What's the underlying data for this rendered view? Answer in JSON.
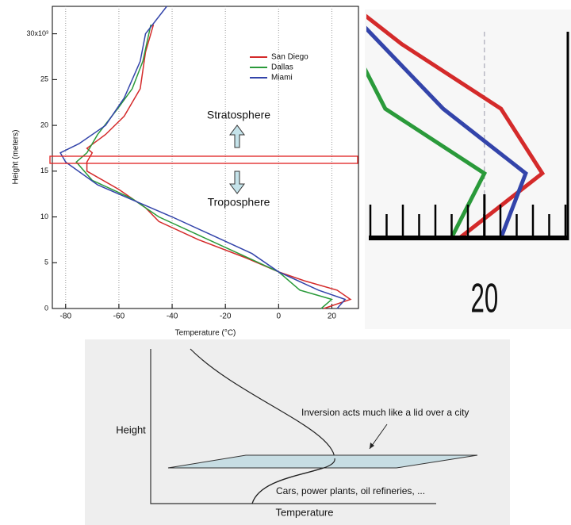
{
  "chart_data": {
    "type": "line",
    "x_label": "Temperature (°C)",
    "y_label": "Height (meters)",
    "annotations": [
      "Stratosphere",
      "Troposphere"
    ],
    "series": [
      {
        "name": "San Diego",
        "color": "#d42a2a",
        "x": [
          17,
          27,
          22,
          10,
          0,
          -12,
          -30,
          -45,
          -50,
          -60,
          -72,
          -72,
          -70,
          -72,
          -65,
          -58,
          -52,
          -50,
          -47
        ],
        "values": [
          0,
          1000,
          2000,
          3000,
          4000,
          5500,
          7500,
          9500,
          11000,
          13000,
          15000,
          16000,
          17000,
          17500,
          19000,
          21000,
          24000,
          28000,
          31000
        ]
      },
      {
        "name": "Dallas",
        "color": "#2a9a3a",
        "x": [
          16,
          20,
          8,
          0,
          -15,
          -30,
          -45,
          -55,
          -70,
          -76,
          -72,
          -68,
          -60,
          -55,
          -51,
          -48
        ],
        "values": [
          0,
          1000,
          2000,
          4000,
          6000,
          8000,
          10000,
          12000,
          14000,
          16000,
          17000,
          19000,
          22000,
          24000,
          27000,
          31000
        ]
      },
      {
        "name": "Miami",
        "color": "#3344aa",
        "x": [
          22,
          25,
          15,
          0,
          -10,
          -25,
          -40,
          -60,
          -68,
          -80,
          -82,
          -75,
          -65,
          -58,
          -52,
          -50,
          -42
        ],
        "values": [
          0,
          1000,
          2000,
          4000,
          6000,
          8000,
          10000,
          12500,
          13500,
          16000,
          17000,
          18000,
          20000,
          23000,
          27000,
          30000,
          33000
        ]
      }
    ],
    "xlim": [
      -85,
      30
    ],
    "ylim": [
      0,
      33000
    ],
    "xticks": [
      -80,
      -60,
      -40,
      -20,
      0,
      20
    ],
    "yticks": [
      0,
      {
        "value": 5000,
        "label": "5"
      },
      {
        "value": 10000,
        "label": "10"
      },
      {
        "value": 15000,
        "label": "15"
      },
      {
        "value": 20000,
        "label": "20"
      },
      {
        "value": 25000,
        "label": "25"
      },
      {
        "value": 30000,
        "label": "30x10³"
      }
    ],
    "grid": true,
    "legend": "upper right"
  },
  "inset": {
    "xlim": [
      6,
      30
    ],
    "ylim": [
      0,
      3500
    ],
    "xticks": [
      20
    ]
  },
  "diagram": {
    "y_label": "Height",
    "x_label": "Temperature",
    "lid_note": "Inversion acts much like a lid over a city",
    "sources": "Cars, power plants, oil refineries, ..."
  }
}
